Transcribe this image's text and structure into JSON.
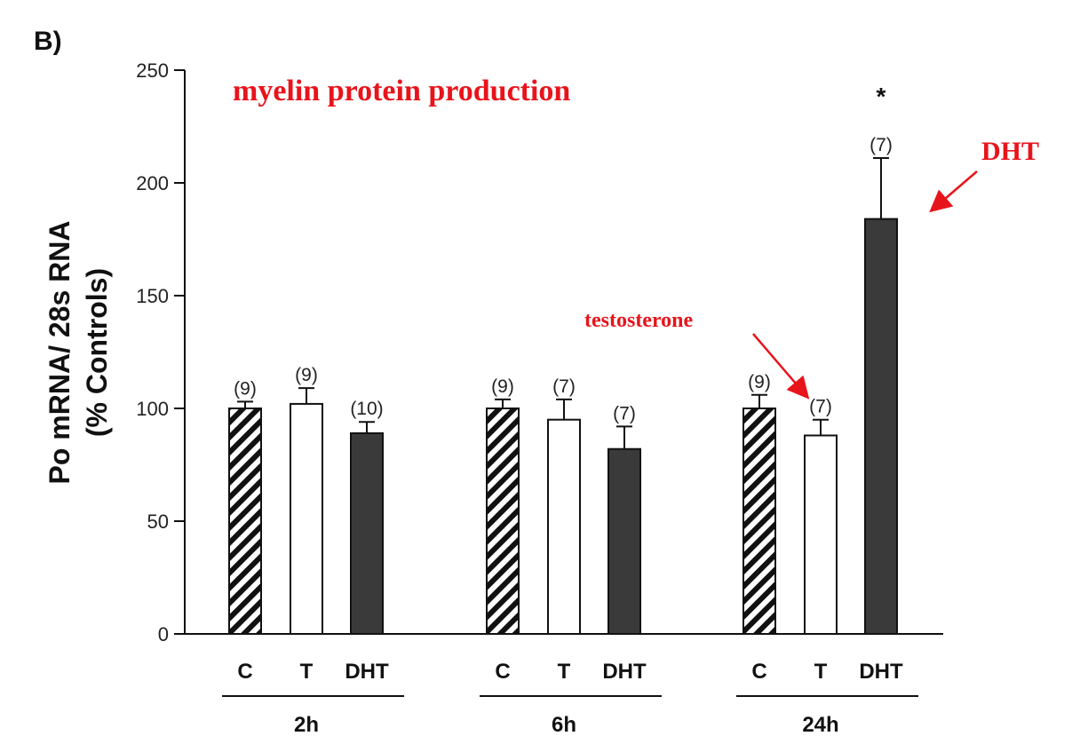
{
  "chart_data": {
    "type": "bar",
    "panel_label": "B)",
    "title": "myelin protein production",
    "ylabel_line1": "Po mRNA/ 28s RNA",
    "ylabel_line2": "(% Controls)",
    "ylim": [
      0,
      250
    ],
    "yticks": [
      "0",
      "50",
      "100",
      "150",
      "200",
      "250"
    ],
    "groups": [
      {
        "label": "2h",
        "bars": [
          {
            "category": "C",
            "value": 100,
            "error": 3,
            "n": "(9)",
            "pattern": "hatched"
          },
          {
            "category": "T",
            "value": 102,
            "error": 7,
            "n": "(9)",
            "pattern": "white"
          },
          {
            "category": "DHT",
            "value": 89,
            "error": 5,
            "n": "(10)",
            "pattern": "dark"
          }
        ]
      },
      {
        "label": "6h",
        "bars": [
          {
            "category": "C",
            "value": 100,
            "error": 4,
            "n": "(9)",
            "pattern": "hatched"
          },
          {
            "category": "T",
            "value": 95,
            "error": 9,
            "n": "(7)",
            "pattern": "white"
          },
          {
            "category": "DHT",
            "value": 82,
            "error": 10,
            "n": "(7)",
            "pattern": "dark"
          }
        ]
      },
      {
        "label": "24h",
        "bars": [
          {
            "category": "C",
            "value": 100,
            "error": 6,
            "n": "(9)",
            "pattern": "hatched"
          },
          {
            "category": "T",
            "value": 88,
            "error": 7,
            "n": "(7)",
            "pattern": "white"
          },
          {
            "category": "DHT",
            "value": 184,
            "error": 27,
            "n": "(7)",
            "pattern": "dark",
            "significance": "*"
          }
        ]
      }
    ],
    "annotations": [
      {
        "text": "testosterone",
        "points_to": "24h-T"
      },
      {
        "text": "DHT",
        "points_to": "24h-DHT"
      }
    ],
    "colors": {
      "dark": "#3a3a3a",
      "annotation": "#e8141b",
      "axis": "#111111"
    }
  }
}
